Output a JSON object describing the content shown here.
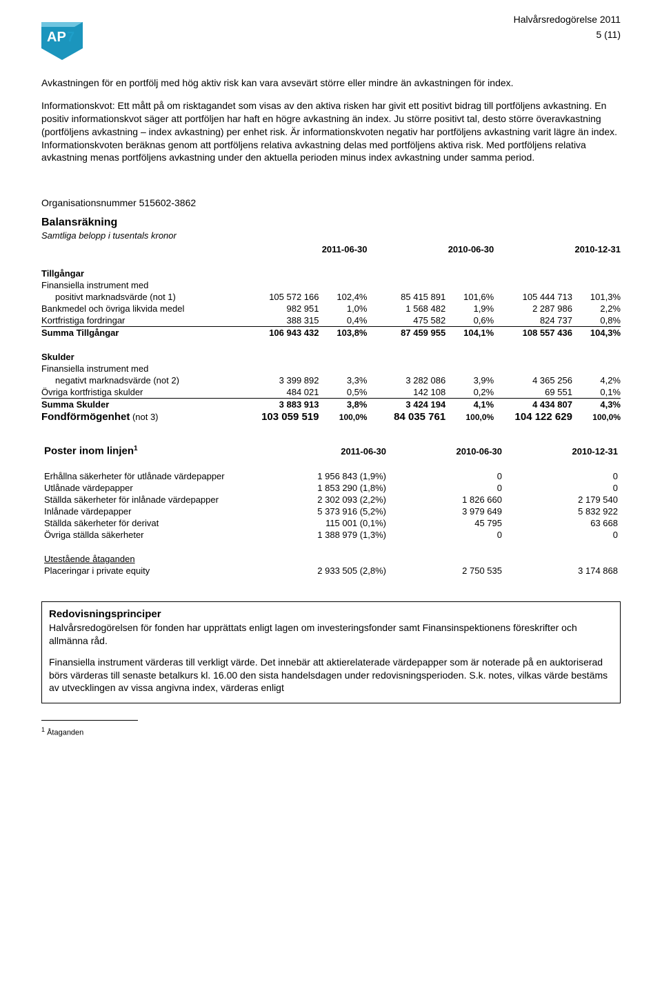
{
  "header": {
    "doc_title": "Halvårsredogörelse 2011",
    "page_num": "5 (11)",
    "logo_text": "AP7",
    "logo_colors": {
      "text": "#ffffff",
      "slash": "#1f9fc9",
      "bg_light": "#6fc5e0",
      "bg_main": "#1b95bd"
    }
  },
  "body": {
    "p1": "Avkastningen för en portfölj med hög aktiv risk kan vara avsevärt större eller mindre än avkastningen för index.",
    "p2": "Informationskvot: Ett mått på om risktagandet som visas av den aktiva risken har givit ett positivt bidrag till portföljens avkastning. En positiv informationskvot säger att portföljen har haft en högre avkastning än index. Ju större positivt tal, desto större överavkastning (portföljens avkastning – index avkastning) per enhet risk. Är informationskvoten negativ har portföljens avkastning varit lägre än index. Informationskvoten beräknas genom att portföljens relativa avkastning delas med portföljens aktiva risk. Med portföljens relativa avkastning menas portföljens avkastning under den aktuella perioden minus index avkastning under samma period."
  },
  "org_num": "Organisationsnummer 515602-3862",
  "balance": {
    "title": "Balansräkning",
    "subtitle": "Samtliga belopp i tusentals kronor",
    "dates": [
      "2011-06-30",
      "2010-06-30",
      "2010-12-31"
    ],
    "assets_title": "Tillgångar",
    "assets": [
      {
        "label": "Finansiella instrument med",
        "vals": [
          "",
          "",
          "",
          "",
          "",
          ""
        ]
      },
      {
        "label": "positivt marknadsvärde (not 1)",
        "indent": true,
        "vals": [
          "105 572 166",
          "102,4%",
          "85 415 891",
          "101,6%",
          "105 444 713",
          "101,3%"
        ]
      },
      {
        "label": "Bankmedel och övriga likvida medel",
        "vals": [
          "982 951",
          "1,0%",
          "1 568 482",
          "1,9%",
          "2 287 986",
          "2,2%"
        ]
      },
      {
        "label": "Kortfristiga fordringar",
        "underline": true,
        "vals": [
          "388 315",
          "0,4%",
          "475 582",
          "0,6%",
          "824 737",
          "0,8%"
        ]
      }
    ],
    "assets_sum": {
      "label": "Summa Tillgångar",
      "vals": [
        "106 943 432",
        "103,8%",
        "87 459 955",
        "104,1%",
        "108 557 436",
        "104,3%"
      ]
    },
    "liab_title": "Skulder",
    "liab": [
      {
        "label": "Finansiella instrument med",
        "vals": [
          "",
          "",
          "",
          "",
          "",
          ""
        ]
      },
      {
        "label": "negativt marknadsvärde (not 2)",
        "indent": true,
        "vals": [
          "3 399 892",
          "3,3%",
          "3 282 086",
          "3,9%",
          "4 365 256",
          "4,2%"
        ]
      },
      {
        "label": "Övriga kortfristiga skulder",
        "underline": true,
        "vals": [
          "484 021",
          "0,5%",
          "142 108",
          "0,2%",
          "69 551",
          "0,1%"
        ]
      }
    ],
    "liab_sum": {
      "label": "Summa Skulder",
      "vals": [
        "3 883 913",
        "3,8%",
        "3 424 194",
        "4,1%",
        "4 434 807",
        "4,3%"
      ]
    },
    "fond": {
      "label": "Fondförmögenhet",
      "note": " (not 3)",
      "vals": [
        "103 059 519",
        "100,0%",
        "84 035 761",
        "100,0%",
        "104 122 629",
        "100,0%"
      ]
    }
  },
  "poster": {
    "title": "Poster inom linjen",
    "sup": "1",
    "dates": [
      "2011-06-30",
      "2010-06-30",
      "2010-12-31"
    ],
    "rows": [
      {
        "label": "Erhållna säkerheter för utlånade värdepapper",
        "vals": [
          "1 956 843 (1,9%)",
          "0",
          "0"
        ]
      },
      {
        "label": "Utlånade värdepapper",
        "vals": [
          "1 853 290 (1,8%)",
          "0",
          "0"
        ]
      },
      {
        "label": "Ställda säkerheter för inlånade värdepapper",
        "vals": [
          "2 302 093 (2,2%)",
          "1 826 660",
          "2 179 540"
        ]
      },
      {
        "label": "Inlånade värdepapper",
        "vals": [
          "5 373 916 (5,2%)",
          "3 979 649",
          "5 832 922"
        ]
      },
      {
        "label": "Ställda säkerheter för derivat",
        "vals": [
          "115 001 (0,1%)",
          "45 795",
          "63 668"
        ]
      },
      {
        "label": "Övriga ställda säkerheter",
        "vals": [
          "1 388 979 (1,3%)",
          "0",
          "0"
        ]
      }
    ],
    "sub_title": "Utestående åtaganden",
    "sub_row": {
      "label": "Placeringar i private equity",
      "vals": [
        "2 933 505 (2,8%)",
        "2 750 535",
        "3 174 868"
      ]
    }
  },
  "box": {
    "title": "Redovisningsprinciper",
    "p1": "Halvårsredogörelsen för fonden har upprättats enligt lagen om investeringsfonder samt Finansinspektionens föreskrifter och allmänna råd.",
    "p2": "Finansiella instrument värderas till verkligt värde. Det innebär att aktierelaterade värdepapper som är noterade på en auktoriserad börs värderas till senaste betalkurs kl. 16.00 den sista handelsdagen under redovisningsperioden. S.k. notes, vilkas värde bestäms av utvecklingen av vissa angivna index, värderas enligt"
  },
  "footnote": {
    "marker": "1",
    "text": " Åtaganden"
  }
}
